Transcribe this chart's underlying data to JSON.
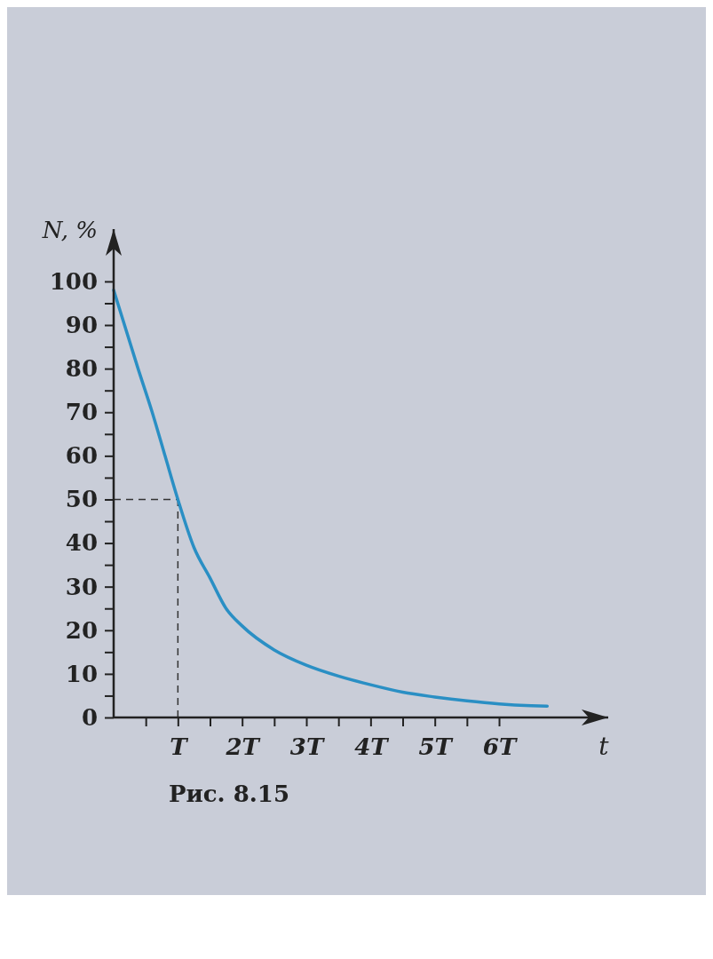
{
  "chart_data": {
    "type": "line",
    "xlabel": "t",
    "ylabel": "N, %",
    "x": [
      0,
      0.38,
      0.6,
      0.8,
      1,
      1.25,
      1.5,
      1.75,
      2,
      2.5,
      3,
      3.5,
      4,
      4.5,
      5,
      5.5,
      6,
      6.5,
      6.75
    ],
    "series": [
      {
        "color": "#2a8fc4",
        "values": [
          98,
          80,
          70,
          60,
          50,
          39,
          32,
          25,
          21,
          15.5,
          12,
          9.5,
          7.5,
          5.8,
          4.7,
          3.8,
          3.1,
          2.7,
          2.6
        ]
      }
    ],
    "xlim": [
      0,
      7.7
    ],
    "ylim": [
      0,
      112
    ],
    "xticks": [
      {
        "value": 0.5,
        "label": null
      },
      {
        "value": 1,
        "label": "T"
      },
      {
        "value": 1.5,
        "label": null
      },
      {
        "value": 2,
        "label": "2T"
      },
      {
        "value": 2.5,
        "label": null
      },
      {
        "value": 3,
        "label": "3T"
      },
      {
        "value": 3.5,
        "label": null
      },
      {
        "value": 4,
        "label": "4T"
      },
      {
        "value": 4.5,
        "label": null
      },
      {
        "value": 5,
        "label": "5T"
      },
      {
        "value": 5.5,
        "label": null
      },
      {
        "value": 6,
        "label": "6T"
      }
    ],
    "yticks": [
      0,
      {
        "value": 5,
        "label": null
      },
      10,
      {
        "value": 15,
        "label": null
      },
      20,
      {
        "value": 25,
        "label": null
      },
      30,
      {
        "value": 35,
        "label": null
      },
      40,
      {
        "value": 45,
        "label": null
      },
      50,
      {
        "value": 55,
        "label": null
      },
      60,
      {
        "value": 65,
        "label": null
      },
      70,
      {
        "value": 75,
        "label": null
      },
      80,
      {
        "value": 85,
        "label": null
      },
      90,
      {
        "value": 95,
        "label": null
      },
      100
    ],
    "ref_lines": [
      {
        "axis": "y",
        "value": 50,
        "line_style": "dashed"
      },
      {
        "axis": "x",
        "value": 1,
        "line_style": "dashed"
      }
    ],
    "grid": false,
    "marker": "none",
    "line_style": "solid",
    "annotations": [
      "Рис. 8.15"
    ]
  }
}
